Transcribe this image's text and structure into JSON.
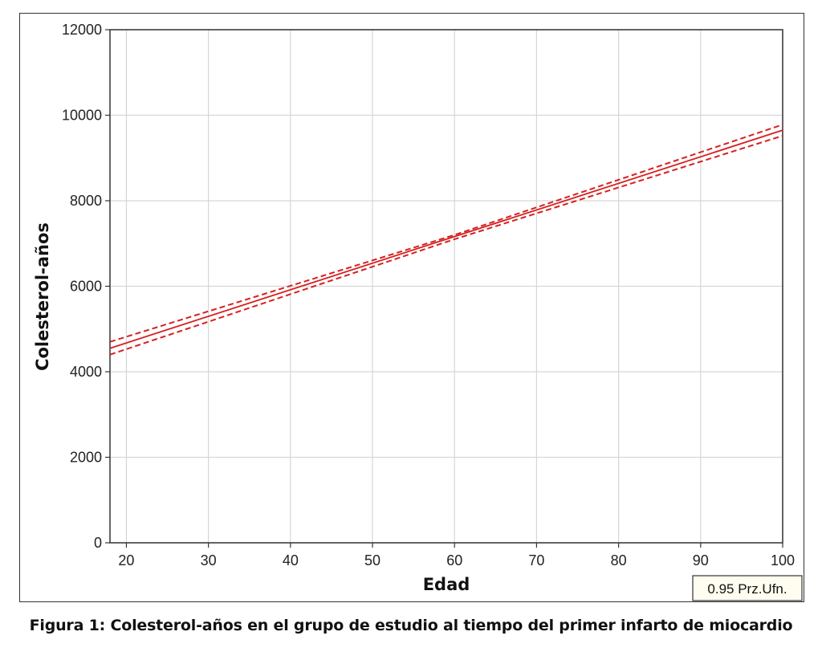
{
  "chart_data": {
    "type": "line",
    "xlabel": "Edad",
    "ylabel": "Colesterol-años",
    "xlim": [
      18,
      100
    ],
    "ylim": [
      0,
      12000
    ],
    "x_ticks": [
      20,
      30,
      40,
      50,
      60,
      70,
      80,
      90,
      100
    ],
    "y_ticks": [
      0,
      2000,
      4000,
      6000,
      8000,
      10000,
      12000
    ],
    "grid": true,
    "series": [
      {
        "style": "solid",
        "color": "#d62020",
        "points": [
          [
            18,
            4550
          ],
          [
            100,
            9650
          ]
        ]
      },
      {
        "style": "dashed",
        "color": "#d62020",
        "points": [
          [
            18,
            4700
          ],
          [
            60,
            7200
          ],
          [
            100,
            9780
          ]
        ]
      },
      {
        "style": "dashed",
        "color": "#d62020",
        "points": [
          [
            18,
            4400
          ],
          [
            60,
            7100
          ],
          [
            100,
            9520
          ]
        ]
      }
    ],
    "annotation": "0.95 Prz.Ufn."
  },
  "caption": "Figura 1: Colesterol-años en el grupo de estudio al tiempo del primer infarto de miocardio"
}
